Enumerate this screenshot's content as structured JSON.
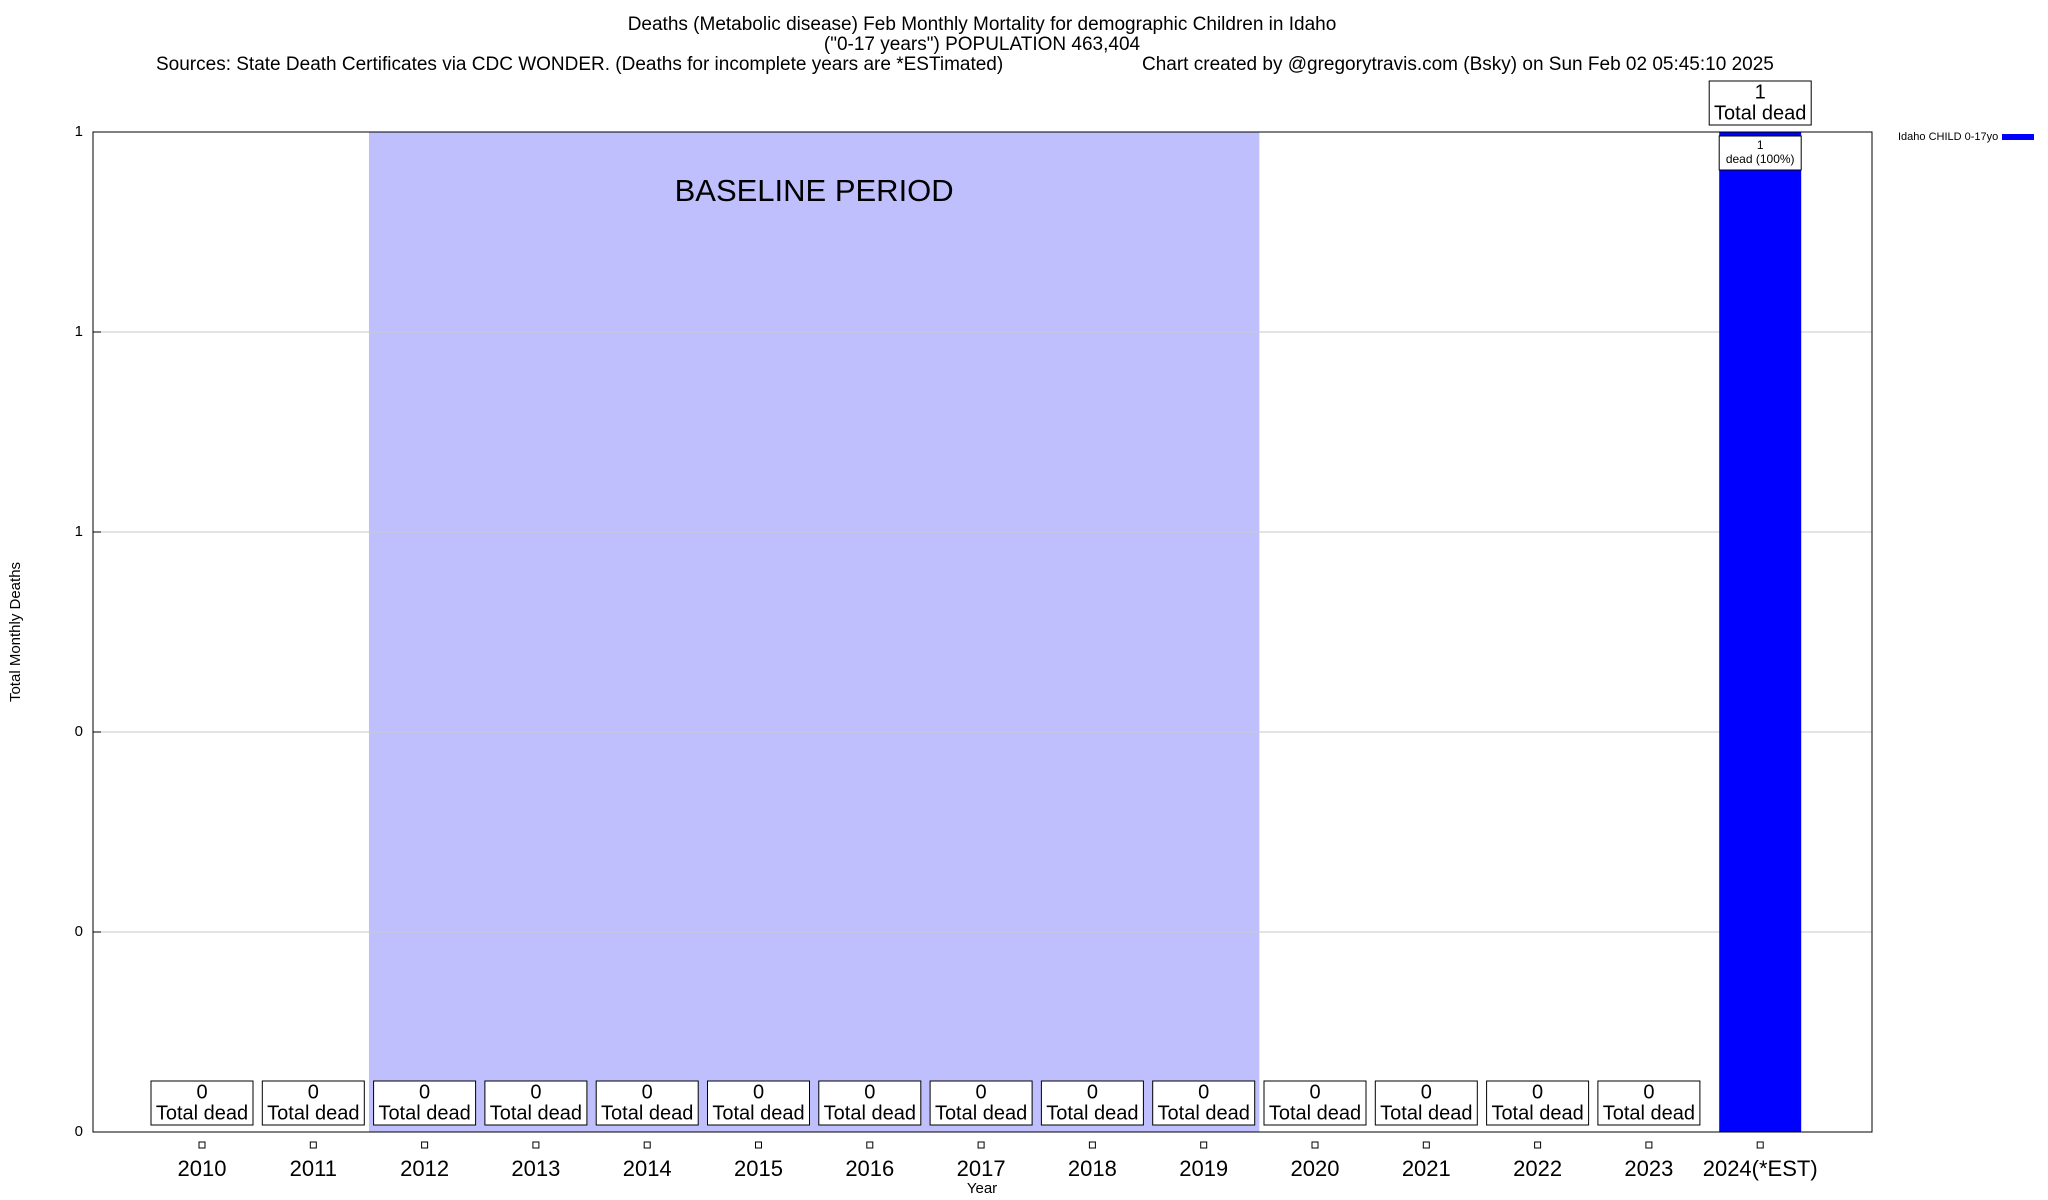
{
  "chart_data": {
    "type": "bar",
    "title": "Deaths (Metabolic disease) Feb Monthly Mortality for demographic Children in Idaho",
    "subtitle": "(\"0-17 years\") POPULATION 463,404",
    "sources": "Sources: State Death Certificates via CDC WONDER. (Deaths for incomplete years are *ESTimated)",
    "credit": "Chart created by @gregorytravis.com (Bsky) on Sun Feb 02 05:45:10 2025",
    "xlabel": "Year",
    "ylabel": "Total Monthly Deaths",
    "categories": [
      "2010",
      "2011",
      "2012",
      "2013",
      "2014",
      "2015",
      "2016",
      "2017",
      "2018",
      "2019",
      "2020",
      "2021",
      "2022",
      "2023",
      "2024(*EST)"
    ],
    "series": [
      {
        "name": "Idaho CHILD 0-17yo",
        "color": "#0000ff",
        "values": [
          0,
          0,
          0,
          0,
          0,
          0,
          0,
          0,
          0,
          0,
          0,
          0,
          0,
          0,
          1
        ]
      }
    ],
    "value_label_text": "Total dead",
    "inner_label": {
      "category": "2024(*EST)",
      "count": 1,
      "text": "dead (100%)"
    },
    "baseline": {
      "label": "BASELINE PERIOD",
      "start": "2012",
      "end": "2019",
      "color": "#bfbffe"
    },
    "ylim": [
      0,
      1
    ],
    "yticks": [
      0,
      {
        "value": 0.2,
        "label": "0"
      },
      {
        "value": 0.4,
        "label": "0"
      },
      {
        "value": 0.6,
        "label": "1"
      },
      {
        "value": 0.8,
        "label": "1"
      },
      1
    ],
    "grid": true,
    "legend": "right"
  }
}
